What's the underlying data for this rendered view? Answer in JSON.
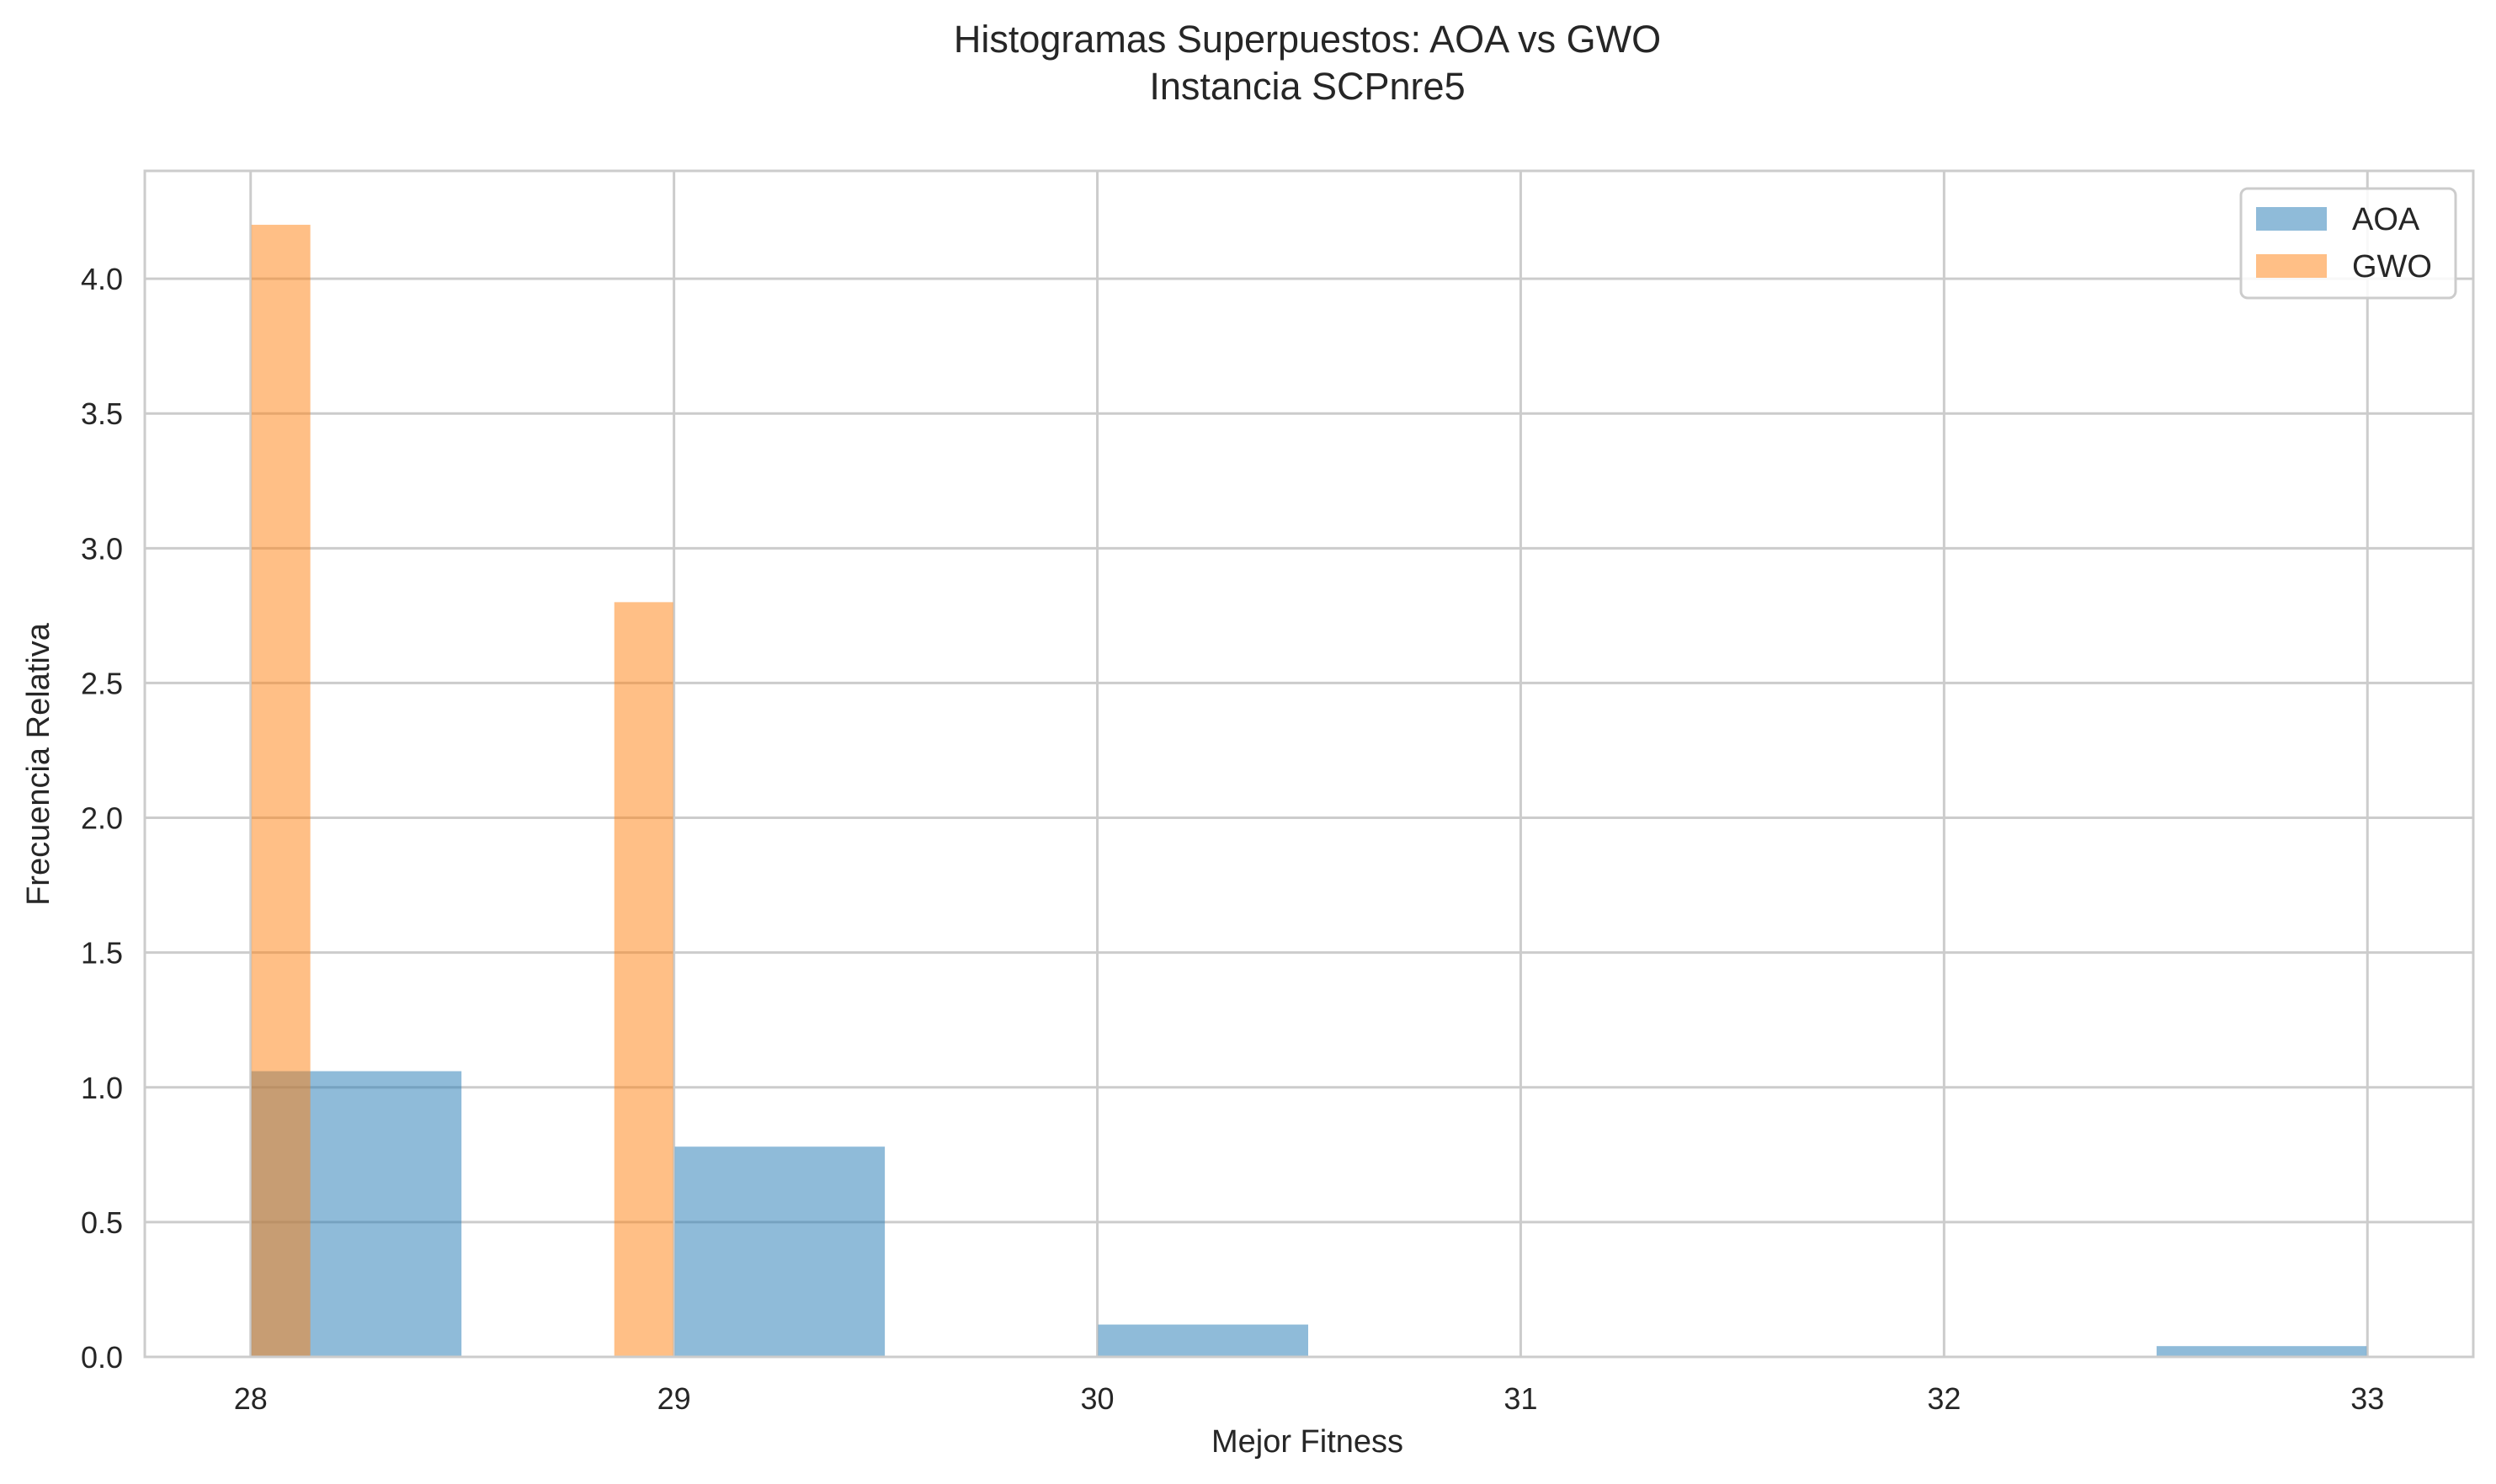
{
  "chart_data": {
    "type": "bar",
    "title": "Histogramas Superpuestos: AOA vs GWO",
    "subtitle": "Instancia SCPnre5",
    "xlabel": "Mejor Fitness",
    "ylabel": "Frecuencia Relativa",
    "xlim": [
      27.75,
      33.25
    ],
    "ylim": [
      0,
      4.4
    ],
    "xticks": [
      28,
      29,
      30,
      31,
      32,
      33
    ],
    "yticks": [
      0.0,
      0.5,
      1.0,
      1.5,
      2.0,
      2.5,
      3.0,
      3.5,
      4.0
    ],
    "ytick_labels": [
      "0.0",
      "0.5",
      "1.0",
      "1.5",
      "2.0",
      "2.5",
      "3.0",
      "3.5",
      "4.0"
    ],
    "grid": true,
    "legend_position": "top-right",
    "series": [
      {
        "name": "AOA",
        "color": "#1f77b4",
        "alpha": 0.5,
        "bins": [
          {
            "x0": 28.0,
            "x1": 28.5,
            "value": 1.06
          },
          {
            "x0": 28.5,
            "x1": 29.0,
            "value": 0.0
          },
          {
            "x0": 29.0,
            "x1": 29.5,
            "value": 0.78
          },
          {
            "x0": 29.5,
            "x1": 30.0,
            "value": 0.0
          },
          {
            "x0": 30.0,
            "x1": 30.5,
            "value": 0.12
          },
          {
            "x0": 30.5,
            "x1": 31.0,
            "value": 0.0
          },
          {
            "x0": 31.0,
            "x1": 31.5,
            "value": 0.0
          },
          {
            "x0": 31.5,
            "x1": 32.0,
            "value": 0.0
          },
          {
            "x0": 32.0,
            "x1": 32.5,
            "value": 0.0
          },
          {
            "x0": 32.5,
            "x1": 33.0,
            "value": 0.04
          }
        ]
      },
      {
        "name": "GWO",
        "color": "#ff7f0e",
        "alpha": 0.5,
        "bins": [
          {
            "x0": 28.0,
            "x1": 28.143,
            "value": 4.2
          },
          {
            "x0": 28.857,
            "x1": 29.0,
            "value": 2.8
          }
        ]
      }
    ]
  }
}
